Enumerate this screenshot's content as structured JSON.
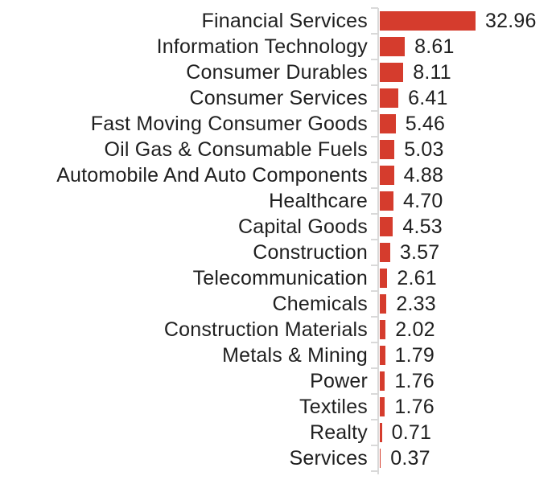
{
  "chart_data": {
    "type": "bar",
    "orientation": "horizontal",
    "title": "",
    "xlabel": "",
    "ylabel": "",
    "grid": false,
    "legend": false,
    "value_labels_position": "end-of-bar",
    "categories": [
      "Financial Services",
      "Information Technology",
      "Consumer Durables",
      "Consumer Services",
      "Fast Moving Consumer Goods",
      "Oil Gas & Consumable Fuels",
      "Automobile And Auto Components",
      "Healthcare",
      "Capital Goods",
      "Construction",
      "Telecommunication",
      "Chemicals",
      "Construction Materials",
      "Metals & Mining",
      "Power",
      "Textiles",
      "Realty",
      "Services"
    ],
    "values": [
      32.96,
      8.61,
      8.11,
      6.41,
      5.46,
      5.03,
      4.88,
      4.7,
      4.53,
      3.57,
      2.61,
      2.33,
      2.02,
      1.79,
      1.76,
      1.76,
      0.71,
      0.37
    ],
    "value_labels": [
      "32.96",
      "8.61",
      "8.11",
      "6.41",
      "5.46",
      "5.03",
      "4.88",
      "4.70",
      "4.53",
      "3.57",
      "2.61",
      "2.33",
      "2.02",
      "1.79",
      "1.76",
      "1.76",
      "0.71",
      "0.37"
    ],
    "bar_color": "#d53c2d",
    "axis_color": "#d9d9d9",
    "label_color": "#1f1f1f"
  }
}
